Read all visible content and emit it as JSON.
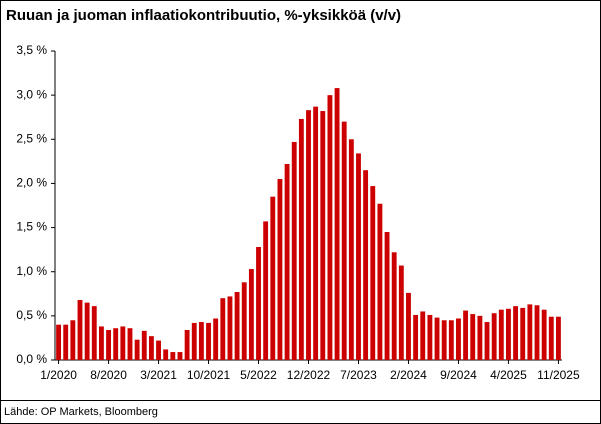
{
  "chart_data": {
    "type": "bar",
    "title": "Ruuan ja juoman inflaatiokontribuutio, %-yksikköä (v/v)",
    "source": "Lähde: OP Markets, Bloomberg",
    "categories": [
      "1/2020",
      null,
      null,
      null,
      null,
      null,
      null,
      "8/2020",
      null,
      null,
      null,
      null,
      null,
      null,
      "3/2021",
      null,
      null,
      null,
      null,
      null,
      null,
      "10/2021",
      null,
      null,
      null,
      null,
      null,
      null,
      "5/2022",
      null,
      null,
      null,
      null,
      null,
      null,
      "12/2022",
      null,
      null,
      null,
      null,
      null,
      null,
      "7/2023",
      null,
      null,
      null,
      null,
      null,
      null,
      "2/2024",
      null,
      null,
      null,
      null,
      null,
      null,
      "9/2024",
      null,
      null,
      null,
      null,
      null,
      null,
      "4/2025",
      null,
      null,
      null,
      null,
      null,
      null,
      "11/2025"
    ],
    "values": [
      0.4,
      0.4,
      0.45,
      0.68,
      0.65,
      0.61,
      0.38,
      0.34,
      0.36,
      0.38,
      0.36,
      0.23,
      0.33,
      0.27,
      0.22,
      0.12,
      0.09,
      0.09,
      0.34,
      0.42,
      0.43,
      0.42,
      0.47,
      0.7,
      0.72,
      0.77,
      0.88,
      1.03,
      1.28,
      1.57,
      1.85,
      2.05,
      2.22,
      2.47,
      2.73,
      2.83,
      2.87,
      2.82,
      3.0,
      3.08,
      2.7,
      2.5,
      2.34,
      2.15,
      1.97,
      1.77,
      1.45,
      1.22,
      1.07,
      0.76,
      0.51,
      0.55,
      0.51,
      0.48,
      0.45,
      0.45,
      0.47,
      0.56,
      0.52,
      0.5,
      0.43,
      0.53,
      0.57,
      0.58,
      0.61,
      0.59,
      0.63,
      0.62,
      0.57,
      0.49,
      0.49
    ],
    "color": "#cc0000",
    "ylim": [
      0,
      3.5
    ],
    "yticks": [
      {
        "value": 0,
        "label": "0,0 %"
      },
      {
        "value": 0.5,
        "label": "0,5 %"
      },
      {
        "value": 1,
        "label": "1,0 %"
      },
      {
        "value": 1.5,
        "label": "1,5 %"
      },
      {
        "value": 2,
        "label": "2,0 %"
      },
      {
        "value": 2.5,
        "label": "2,5 %"
      },
      {
        "value": 3,
        "label": "3,0 %"
      },
      {
        "value": 3.5,
        "label": "3,5 %"
      }
    ],
    "grid": false
  }
}
